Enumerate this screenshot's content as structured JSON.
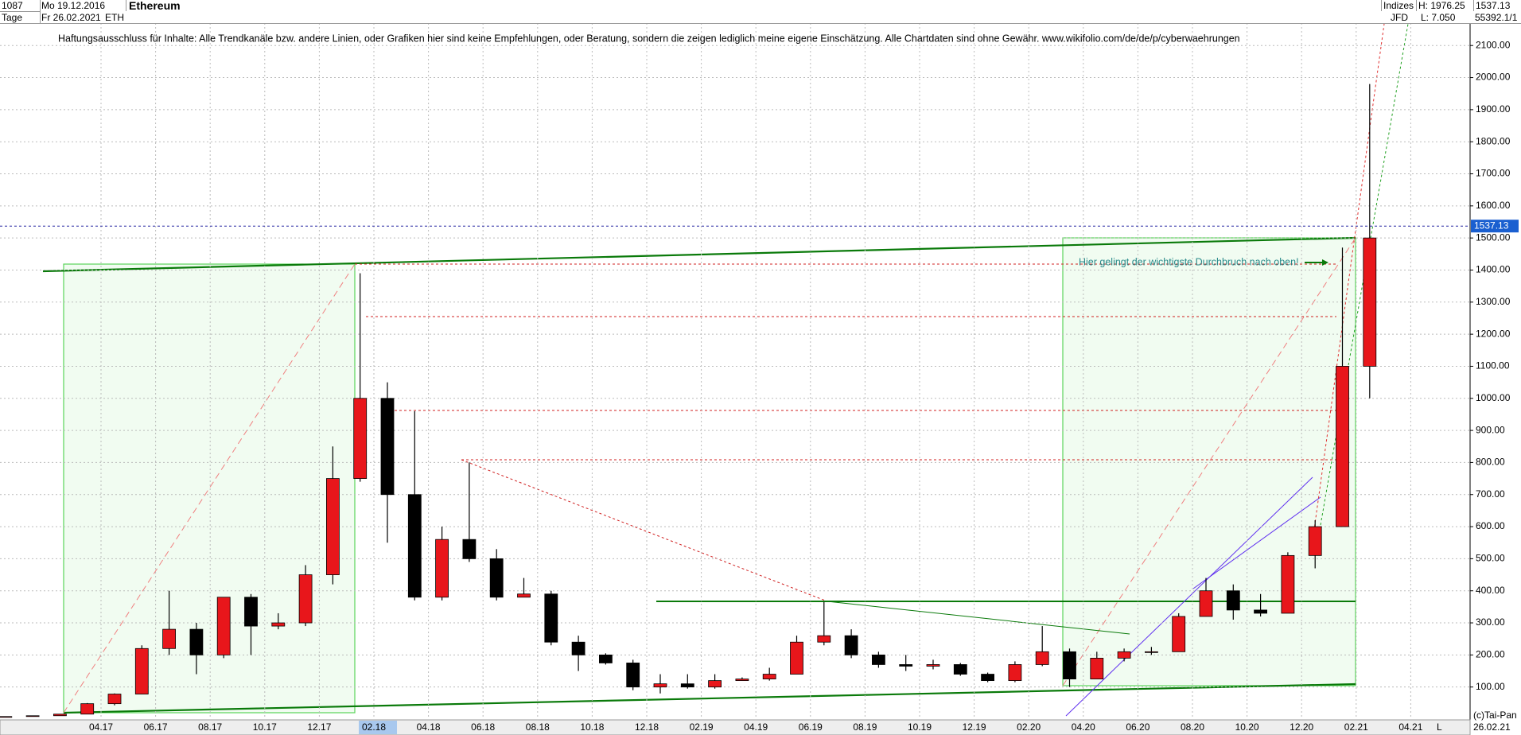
{
  "header": {
    "count": "1087",
    "unit": "Tage",
    "from": "Mo 19.12.2016",
    "to": "Fr 26.02.2021",
    "symbol": "ETH",
    "group": "Indizes",
    "source": "JFD",
    "high": "H: 1976.25",
    "low": "L: 7.050",
    "volume": "55392.1/1"
  },
  "footer": {
    "copyright": "(c)Tai-Pan",
    "date": "26.02.21",
    "scale": "L"
  },
  "chart_data": {
    "type": "candlestick",
    "title": "Ethereum",
    "subtitle": "Haftungsausschluss für Inhalte: Alle Trendkanäle bzw. andere Linien, oder Grafiken hier sind keine Empfehlungen, oder Beratung, sondern die zeigen lediglich meine eigene Einschätzung. Alle Chartdaten sind ohne Gewähr.  www.wikifolio.com/de/de/p/cyberwaehrungen",
    "annotations": [
      {
        "text": "Hier gelingt der wichtigste Durchbruch nach oben!"
      }
    ],
    "last_price": 1537.13,
    "categories": [
      null,
      null,
      null,
      null,
      "04.17",
      null,
      "06.17",
      null,
      "08.17",
      null,
      "10.17",
      null,
      "12.17",
      null,
      "02.18",
      null,
      "04.18",
      null,
      "06.18",
      null,
      "08.18",
      null,
      "10.18",
      null,
      "12.18",
      null,
      "02.19",
      null,
      "04.19",
      null,
      "06.19",
      null,
      "08.19",
      null,
      "10.19",
      null,
      "12.19",
      null,
      "02.20",
      null,
      "04.20",
      null,
      "06.20",
      null,
      "08.20",
      null,
      "10.20",
      null,
      "12.20",
      null,
      "02.21",
      null,
      "04.21"
    ],
    "open": [
      7,
      8,
      10.5,
      15.5,
      48,
      78,
      220,
      280,
      200,
      380,
      290,
      300,
      450,
      750,
      1000,
      700,
      380,
      560,
      500,
      380,
      390,
      240,
      200,
      175,
      100,
      110,
      100,
      120,
      125,
      140,
      240,
      260,
      200,
      170,
      165,
      170,
      140,
      120,
      170,
      210,
      125,
      190,
      210,
      210,
      320,
      400,
      340,
      330,
      510,
      600,
      1100,
      null,
      null
    ],
    "high": [
      8.5,
      11,
      16,
      50,
      80,
      230,
      400,
      300,
      380,
      390,
      330,
      480,
      850,
      1390,
      1050,
      960,
      600,
      800,
      530,
      440,
      400,
      260,
      205,
      185,
      140,
      140,
      140,
      130,
      160,
      260,
      365,
      280,
      210,
      200,
      185,
      175,
      145,
      180,
      290,
      220,
      210,
      220,
      225,
      330,
      440,
      420,
      390,
      520,
      620,
      1470,
      1980,
      null,
      null
    ],
    "low": [
      6.5,
      8,
      10.5,
      15,
      43,
      78,
      200,
      140,
      190,
      200,
      280,
      290,
      420,
      740,
      550,
      370,
      370,
      490,
      370,
      380,
      230,
      150,
      170,
      90,
      80,
      95,
      95,
      120,
      120,
      140,
      230,
      190,
      160,
      150,
      155,
      135,
      115,
      115,
      165,
      100,
      125,
      180,
      200,
      210,
      320,
      310,
      320,
      330,
      470,
      600,
      1000,
      null,
      null
    ],
    "close": [
      8,
      10.5,
      15.5,
      48,
      78,
      220,
      280,
      200,
      380,
      290,
      300,
      450,
      750,
      1000,
      700,
      380,
      560,
      500,
      380,
      390,
      240,
      200,
      175,
      100,
      110,
      100,
      120,
      125,
      140,
      240,
      260,
      200,
      170,
      165,
      170,
      140,
      120,
      170,
      210,
      125,
      190,
      210,
      210,
      320,
      400,
      340,
      330,
      510,
      600,
      1100,
      1500,
      null,
      null
    ],
    "up_color": "#e8161b",
    "down_color": "#000000",
    "ylim": [
      0,
      2170
    ],
    "yticks": [
      {
        "value": 100,
        "label": "100.00"
      },
      {
        "value": 200,
        "label": "200.00"
      },
      {
        "value": 300,
        "label": "300.00"
      },
      {
        "value": 400,
        "label": "400.00"
      },
      {
        "value": 500,
        "label": "500.00"
      },
      {
        "value": 600,
        "label": "600.00"
      },
      {
        "value": 700,
        "label": "700.00"
      },
      {
        "value": 800,
        "label": "800.00"
      },
      {
        "value": 900,
        "label": "900.00"
      },
      {
        "value": 1000,
        "label": "1000.00"
      },
      {
        "value": 1100,
        "label": "1100.00"
      },
      {
        "value": 1200,
        "label": "1200.00"
      },
      {
        "value": 1300,
        "label": "1300.00"
      },
      {
        "value": 1400,
        "label": "1400.00"
      },
      {
        "value": 1500,
        "label": "1500.00"
      },
      {
        "value": 1600,
        "label": "1600.00"
      },
      {
        "value": 1700,
        "label": "1700.00"
      },
      {
        "value": 1800,
        "label": "1800.00"
      },
      {
        "value": 1900,
        "label": "1900.00"
      },
      {
        "value": 2000,
        "label": "2000.00"
      },
      {
        "value": 2100,
        "label": "2100.00"
      }
    ],
    "grid": true
  }
}
